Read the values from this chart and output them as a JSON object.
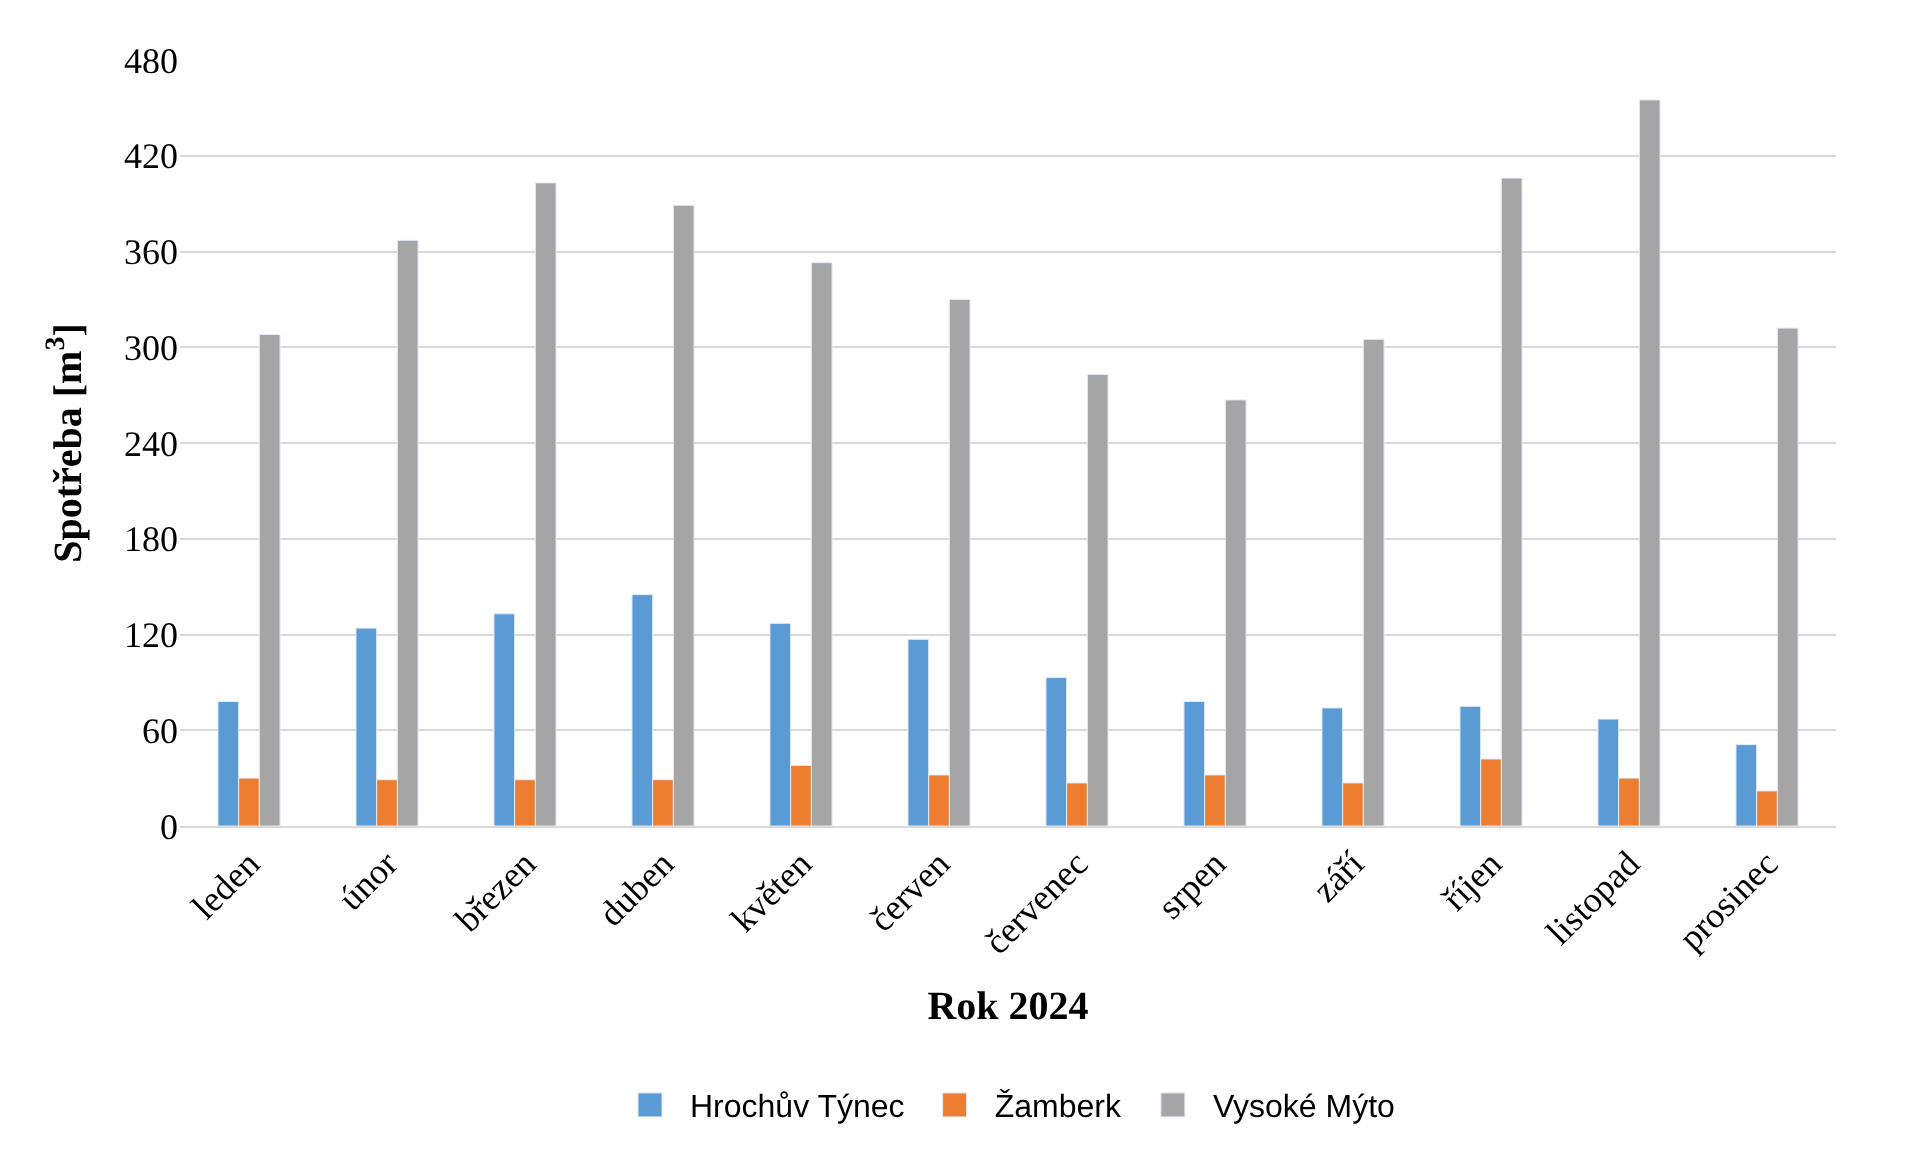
{
  "chart_data": {
    "type": "bar",
    "xlabel": "Rok 2024",
    "ylabel": "Spotřeba [m$^{3}$]",
    "categories": [
      "leden",
      "únor",
      "březen",
      "duben",
      "květen",
      "červen",
      "červenec",
      "srpen",
      "září",
      "říjen",
      "listopad",
      "prosinec"
    ],
    "series": [
      {
        "name": "Hrochův Týnec",
        "color": "#5b9bd5",
        "values": [
          78,
          124,
          133,
          145,
          127,
          117,
          93,
          78,
          74,
          75,
          67,
          51
        ]
      },
      {
        "name": "Žamberk",
        "color": "#ed7d31",
        "values": [
          30,
          29,
          29,
          29,
          38,
          32,
          27,
          32,
          27,
          42,
          30,
          22
        ]
      },
      {
        "name": "Vysoké Mýto",
        "color": "#a5a5a5",
        "values": [
          308,
          367,
          403,
          389,
          353,
          330,
          283,
          267,
          305,
          406,
          455,
          312
        ]
      }
    ],
    "ylim": [
      0,
      480
    ],
    "yticks": [
      0,
      60,
      120,
      180,
      240,
      300,
      360,
      420,
      480
    ],
    "grid": "y",
    "legend": "bottom"
  }
}
